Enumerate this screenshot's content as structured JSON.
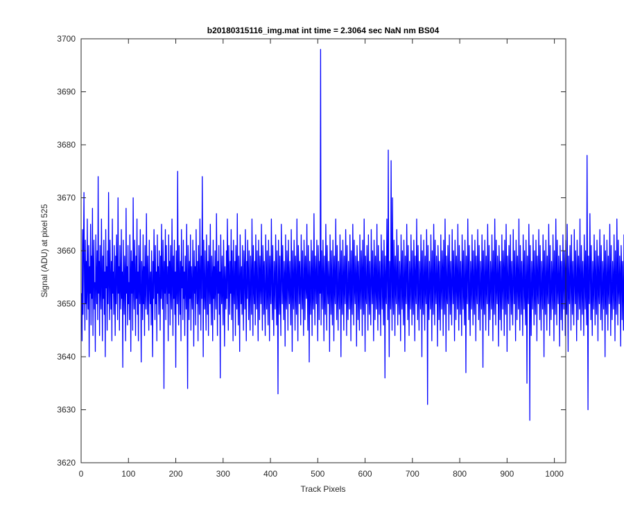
{
  "chart_data": {
    "type": "line",
    "title": "b20180315116_img.mat int time = 2.3064 sec  NaN nm BS04",
    "xlabel": "Track Pixels",
    "ylabel": "Signal (ADU) at pixel 525",
    "xlim": [
      0,
      1024
    ],
    "ylim": [
      3620,
      3700
    ],
    "xticks": [
      0,
      100,
      200,
      300,
      400,
      500,
      600,
      700,
      800,
      900,
      1000
    ],
    "yticks": [
      3620,
      3630,
      3640,
      3650,
      3660,
      3670,
      3680,
      3690,
      3700
    ],
    "grid": false,
    "series": [
      {
        "color": "#0000ff",
        "x_start": 1,
        "x_step": 1,
        "note_points": "approximate noise trace; notable values: peak 3698 at x=529, minimum 3628 at x=887",
        "values": [
          3652,
          3643,
          3664,
          3648,
          3660,
          3671,
          3654,
          3645,
          3662,
          3650,
          3658,
          3647,
          3666,
          3653,
          3649,
          3661,
          3640,
          3657,
          3652,
          3665,
          3646,
          3659,
          3651,
          3668,
          3644,
          3656,
          3662,
          3649,
          3654,
          3641,
          3663,
          3655,
          3650,
          3660,
          3647,
          3674,
          3652,
          3658,
          3644,
          3661,
          3653,
          3649,
          3666,
          3655,
          3643,
          3659,
          3651,
          3662,
          3648,
          3656,
          3640,
          3664,
          3653,
          3657,
          3645,
          3660,
          3650,
          3671,
          3654,
          3647,
          3662,
          3655,
          3649,
          3658,
          3643,
          3666,
          3652,
          3656,
          3648,
          3661,
          3653,
          3644,
          3659,
          3650,
          3663,
          3655,
          3647,
          3670,
          3652,
          3657,
          3645,
          3661,
          3654,
          3649,
          3664,
          3651,
          3656,
          3638,
          3662,
          3653,
          3648,
          3659,
          3655,
          3643,
          3668,
          3652,
          3657,
          3646,
          3661,
          3650,
          3654,
          3647,
          3663,
          3656,
          3641,
          3660,
          3652,
          3658,
          3645,
          3670,
          3653,
          3649,
          3662,
          3655,
          3644,
          3659,
          3651,
          3666,
          3648,
          3656,
          3643,
          3661,
          3654,
          3650,
          3664,
          3652,
          3639,
          3658,
          3655,
          3647,
          3663,
          3650,
          3657,
          3644,
          3661,
          3653,
          3649,
          3667,
          3655,
          3648,
          3659,
          3652,
          3645,
          3662,
          3654,
          3650,
          3656,
          3646,
          3660,
          3653,
          3640,
          3658,
          3651,
          3664,
          3655,
          3647,
          3661,
          3650,
          3656,
          3643,
          3663,
          3652,
          3657,
          3648,
          3660,
          3654,
          3645,
          3659,
          3651,
          3665,
          3653,
          3649,
          3662,
          3656,
          3634,
          3658,
          3652,
          3664,
          3647,
          3661,
          3655,
          3650,
          3657,
          3643,
          3663,
          3652,
          3658,
          3646,
          3661,
          3653,
          3649,
          3666,
          3655,
          3644,
          3659,
          3651,
          3662,
          3648,
          3656,
          3638,
          3660,
          3654,
          3650,
          3675,
          3652,
          3646,
          3661,
          3655,
          3648,
          3658,
          3643,
          3664,
          3653,
          3657,
          3647,
          3662,
          3651,
          3656,
          3644,
          3659,
          3654,
          3649,
          3665,
          3652,
          3634,
          3661,
          3656,
          3647,
          3658,
          3651,
          3663,
          3645,
          3657,
          3653,
          3649,
          3662,
          3655,
          3642,
          3660,
          3652,
          3657,
          3646,
          3664,
          3654,
          3650,
          3658,
          3643,
          3661,
          3653,
          3648,
          3666,
          3655,
          3645,
          3659,
          3651,
          3674,
          3656,
          3640,
          3662,
          3653,
          3649,
          3660,
          3652,
          3645,
          3663,
          3656,
          3648,
          3658,
          3644,
          3661,
          3654,
          3650,
          3665,
          3652,
          3646,
          3659,
          3655,
          3643,
          3662,
          3651,
          3657,
          3647,
          3660,
          3653,
          3649,
          3667,
          3655,
          3644,
          3658,
          3652,
          3661,
          3648,
          3656,
          3636,
          3663,
          3654,
          3650,
          3659,
          3652,
          3646,
          3662,
          3655,
          3642,
          3657,
          3653,
          3649,
          3660,
          3651,
          3666,
          3656,
          3645,
          3661,
          3654,
          3648,
          3658,
          3652,
          3664,
          3647,
          3660,
          3655,
          3643,
          3662,
          3653,
          3650,
          3658,
          3644,
          3661,
          3656,
          3649,
          3667,
          3652,
          3646,
          3659,
          3654,
          3641,
          3663,
          3655,
          3650,
          3657,
          3648,
          3661,
          3652,
          3645,
          3660,
          3656,
          3649,
          3664,
          3653,
          3643,
          3658,
          3651,
          3662,
          3655,
          3647,
          3660,
          3652,
          3645,
          3659,
          3654,
          3648,
          3666,
          3656,
          3644,
          3661,
          3653,
          3650,
          3658,
          3646,
          3663,
          3655,
          3649,
          3660,
          3652,
          3643,
          3662,
          3656,
          3647,
          3659,
          3654,
          3650,
          3665,
          3653,
          3645,
          3661,
          3657,
          3648,
          3658,
          3651,
          3644,
          3663,
          3655,
          3649,
          3660,
          3652,
          3646,
          3662,
          3656,
          3643,
          3659,
          3653,
          3650,
          3666,
          3655,
          3647,
          3661,
          3652,
          3644,
          3658,
          3654,
          3649,
          3663,
          3656,
          3646,
          3660,
          3652,
          3633,
          3662,
          3655,
          3648,
          3659,
          3651,
          3644,
          3665,
          3657,
          3650,
          3661,
          3653,
          3647,
          3658,
          3655,
          3642,
          3663,
          3652,
          3649,
          3660,
          3656,
          3645,
          3662,
          3654,
          3650,
          3658,
          3652,
          3646,
          3664,
          3655,
          3641,
          3660,
          3653,
          3649,
          3662,
          3656,
          3645,
          3659,
          3652,
          3648,
          3666,
          3654,
          3643,
          3661,
          3657,
          3650,
          3658,
          3653,
          3646,
          3663,
          3655,
          3649,
          3660,
          3652,
          3644,
          3662,
          3656,
          3647,
          3659,
          3654,
          3651,
          3665,
          3652,
          3645,
          3661,
          3655,
          3639,
          3658,
          3653,
          3648,
          3662,
          3656,
          3644,
          3660,
          3652,
          3649,
          3667,
          3654,
          3646,
          3659,
          3655,
          3650,
          3662,
          3653,
          3643,
          3661,
          3657,
          3647,
          3658,
          3652,
          3698,
          3646,
          3660,
          3654,
          3649,
          3662,
          3655,
          3643,
          3659,
          3652,
          3648,
          3665,
          3656,
          3645,
          3661,
          3653,
          3650,
          3658,
          3654,
          3641,
          3663,
          3655,
          3648,
          3660,
          3652,
          3646,
          3662,
          3656,
          3643,
          3659,
          3653,
          3650,
          3666,
          3655,
          3647,
          3661,
          3652,
          3645,
          3658,
          3654,
          3649,
          3663,
          3656,
          3640,
          3660,
          3652,
          3648,
          3662,
          3655,
          3645,
          3659,
          3653,
          3650,
          3664,
          3656,
          3644,
          3661,
          3652,
          3647,
          3658,
          3654,
          3649,
          3663,
          3655,
          3643,
          3660,
          3652,
          3648,
          3665,
          3656,
          3646,
          3662,
          3653,
          3650,
          3659,
          3655,
          3642,
          3661,
          3657,
          3647,
          3658,
          3652,
          3645,
          3663,
          3654,
          3649,
          3660,
          3656,
          3644,
          3662,
          3653,
          3648,
          3666,
          3655,
          3641,
          3659,
          3652,
          3650,
          3661,
          3656,
          3645,
          3663,
          3654,
          3648,
          3658,
          3652,
          3646,
          3664,
          3655,
          3650,
          3660,
          3653,
          3643,
          3662,
          3656,
          3647,
          3659,
          3654,
          3649,
          3665,
          3652,
          3645,
          3661,
          3655,
          3648,
          3658,
          3653,
          3644,
          3663,
          3656,
          3649,
          3660,
          3652,
          3646,
          3662,
          3655,
          3636,
          3659,
          3653,
          3650,
          3666,
          3656,
          3647,
          3679,
          3652,
          3640,
          3658,
          3654,
          3649,
          3677,
          3655,
          3645,
          3670,
          3652,
          3648,
          3662,
          3656,
          3644,
          3659,
          3653,
          3650,
          3664,
          3655,
          3646,
          3661,
          3652,
          3648,
          3658,
          3654,
          3643,
          3663,
          3656,
          3649,
          3660,
          3652,
          3646,
          3662,
          3655,
          3641,
          3659,
          3653,
          3650,
          3665,
          3656,
          3647,
          3661,
          3652,
          3644,
          3658,
          3654,
          3649,
          3663,
          3655,
          3646,
          3660,
          3652,
          3648,
          3662,
          3656,
          3643,
          3659,
          3653,
          3650,
          3666,
          3655,
          3647,
          3661,
          3652,
          3645,
          3658,
          3654,
          3649,
          3663,
          3656,
          3640,
          3660,
          3652,
          3648,
          3662,
          3655,
          3645,
          3659,
          3653,
          3650,
          3664,
          3656,
          3631,
          3661,
          3652,
          3647,
          3658,
          3654,
          3649,
          3663,
          3655,
          3643,
          3660,
          3652,
          3648,
          3665,
          3656,
          3646,
          3662,
          3653,
          3650,
          3659,
          3655,
          3642,
          3661,
          3657,
          3647,
          3658,
          3652,
          3645,
          3663,
          3654,
          3649,
          3660,
          3656,
          3644,
          3662,
          3653,
          3648,
          3666,
          3655,
          3641,
          3659,
          3652,
          3650,
          3661,
          3656,
          3645,
          3663,
          3654,
          3648,
          3658,
          3652,
          3646,
          3664,
          3655,
          3650,
          3660,
          3653,
          3643,
          3662,
          3656,
          3647,
          3659,
          3654,
          3649,
          3665,
          3652,
          3645,
          3661,
          3655,
          3648,
          3658,
          3653,
          3644,
          3663,
          3656,
          3649,
          3660,
          3652,
          3646,
          3662,
          3655,
          3637,
          3659,
          3653,
          3650,
          3666,
          3656,
          3647,
          3661,
          3652,
          3644,
          3658,
          3654,
          3649,
          3663,
          3655,
          3646,
          3660,
          3652,
          3648,
          3662,
          3656,
          3643,
          3659,
          3653,
          3650,
          3664,
          3655,
          3647,
          3661,
          3652,
          3645,
          3658,
          3654,
          3649,
          3663,
          3656,
          3638,
          3660,
          3652,
          3648,
          3662,
          3655,
          3645,
          3659,
          3653,
          3650,
          3665,
          3656,
          3644,
          3661,
          3652,
          3647,
          3658,
          3654,
          3649,
          3663,
          3655,
          3643,
          3660,
          3652,
          3648,
          3666,
          3656,
          3646,
          3662,
          3653,
          3650,
          3659,
          3655,
          3642,
          3661,
          3657,
          3647,
          3658,
          3652,
          3645,
          3663,
          3654,
          3649,
          3660,
          3656,
          3644,
          3662,
          3653,
          3648,
          3665,
          3655,
          3641,
          3659,
          3652,
          3650,
          3661,
          3656,
          3645,
          3663,
          3654,
          3648,
          3658,
          3652,
          3646,
          3664,
          3655,
          3650,
          3660,
          3653,
          3643,
          3662,
          3656,
          3647,
          3659,
          3654,
          3649,
          3666,
          3652,
          3645,
          3661,
          3655,
          3648,
          3658,
          3653,
          3644,
          3663,
          3656,
          3649,
          3660,
          3652,
          3646,
          3662,
          3655,
          3635,
          3659,
          3653,
          3650,
          3665,
          3656,
          3628,
          3661,
          3652,
          3644,
          3658,
          3654,
          3649,
          3663,
          3655,
          3646,
          3660,
          3652,
          3648,
          3662,
          3656,
          3643,
          3659,
          3653,
          3650,
          3664,
          3655,
          3647,
          3661,
          3652,
          3645,
          3658,
          3654,
          3649,
          3663,
          3656,
          3640,
          3660,
          3652,
          3648,
          3662,
          3655,
          3645,
          3659,
          3653,
          3650,
          3665,
          3656,
          3644,
          3661,
          3652,
          3647,
          3658,
          3654,
          3649,
          3663,
          3655,
          3643,
          3660,
          3652,
          3648,
          3666,
          3656,
          3646,
          3662,
          3653,
          3650,
          3659,
          3655,
          3642,
          3661,
          3657,
          3647,
          3658,
          3652,
          3645,
          3663,
          3654,
          3649,
          3660,
          3656,
          3644,
          3662,
          3653,
          3648,
          3665,
          3655,
          3641,
          3659,
          3652,
          3650,
          3661,
          3656,
          3645,
          3663,
          3654,
          3648,
          3658,
          3652,
          3646,
          3664,
          3655,
          3650,
          3660,
          3653,
          3643,
          3662,
          3656,
          3647,
          3659,
          3654,
          3649,
          3666,
          3652,
          3645,
          3661,
          3655,
          3648,
          3658,
          3653,
          3644,
          3663,
          3656,
          3649,
          3660,
          3652,
          3646,
          3678,
          3655,
          3630,
          3659,
          3653,
          3650,
          3667,
          3656,
          3647,
          3661,
          3652,
          3644,
          3658,
          3654,
          3649,
          3663,
          3655,
          3646,
          3660,
          3652,
          3648,
          3662,
          3656,
          3643,
          3659,
          3653,
          3650,
          3664,
          3655,
          3647,
          3661,
          3652,
          3645,
          3658,
          3654,
          3649,
          3663,
          3656,
          3640,
          3660,
          3652,
          3648,
          3662,
          3655,
          3645,
          3659,
          3653,
          3650,
          3665,
          3656,
          3644,
          3661,
          3652,
          3647,
          3658,
          3654,
          3649,
          3663,
          3655,
          3643,
          3660,
          3652,
          3648,
          3666,
          3656,
          3646,
          3662,
          3653,
          3650,
          3659,
          3655,
          3642,
          3661,
          3657,
          3647,
          3658,
          3652,
          3645,
          3663,
          3654,
          3649,
          3660,
          3656,
          3644,
          3662,
          3653,
          3648,
          3665,
          3655,
          3641,
          3659,
          3652,
          3650,
          3661,
          3656,
          3645,
          3663,
          3654,
          3648,
          3658,
          3652,
          3646,
          3664,
          3655,
          3650,
          3660
        ]
      }
    ]
  }
}
